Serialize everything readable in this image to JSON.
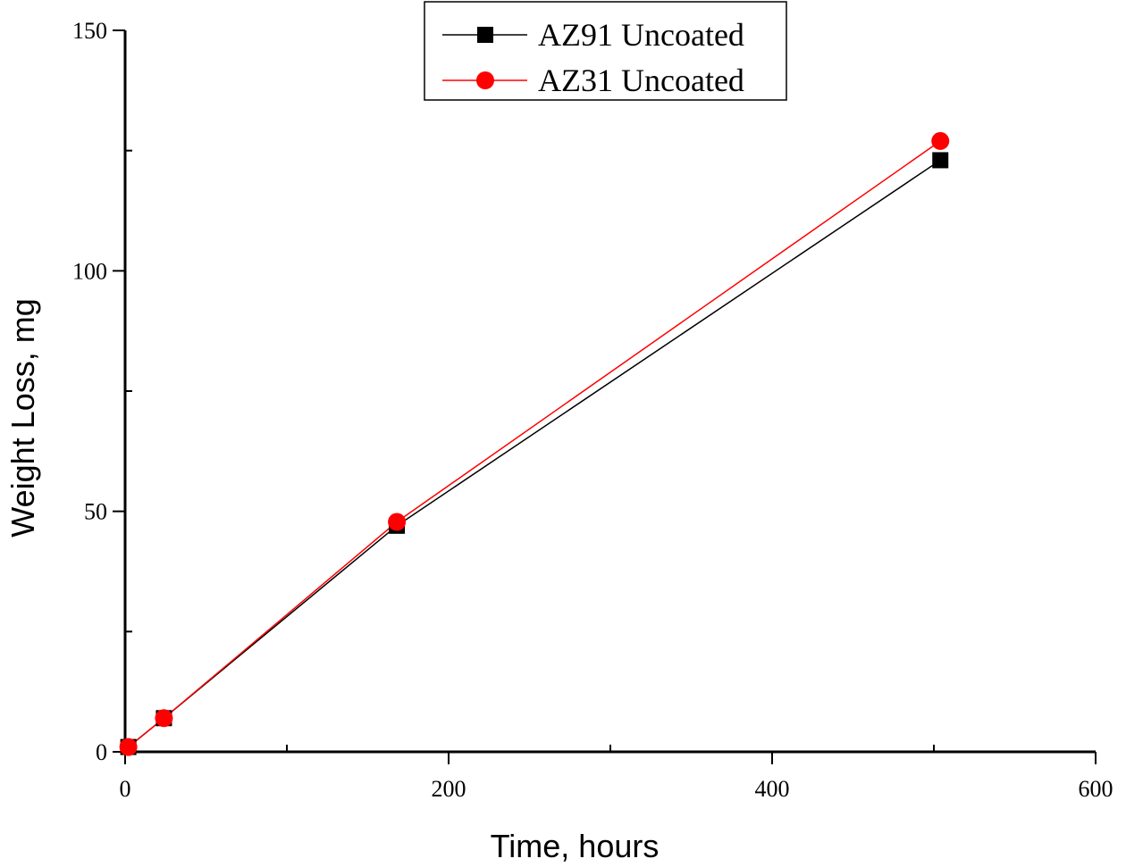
{
  "chart_data": {
    "type": "line",
    "title": "",
    "xlabel": "Time, hours",
    "ylabel": "Weight Loss, mg",
    "xlim": [
      0,
      600
    ],
    "ylim": [
      0,
      150
    ],
    "xticks": [
      0,
      200,
      400,
      600
    ],
    "yticks": [
      0,
      50,
      100,
      150
    ],
    "grid": false,
    "legend_position": "top-center",
    "series": [
      {
        "name": "AZ91 Uncoated",
        "color": "#000000",
        "marker": "square",
        "x": [
          2,
          24,
          168,
          504
        ],
        "y": [
          1,
          7,
          47,
          123
        ]
      },
      {
        "name": "AZ31 Uncoated",
        "color": "#ff0000",
        "marker": "circle",
        "x": [
          2,
          24,
          168,
          504
        ],
        "y": [
          1,
          7,
          47.8,
          127
        ]
      }
    ]
  }
}
